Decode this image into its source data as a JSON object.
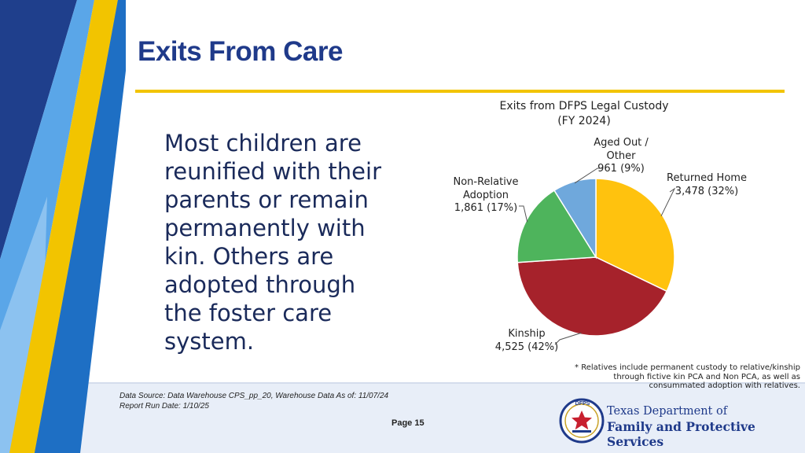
{
  "page": {
    "title": "Exits From Care",
    "page_label": "Page 15"
  },
  "body": {
    "lines": [
      "Most children are",
      "reunified with their",
      "parents or remain",
      "permanently with",
      "kin. Others are",
      "adopted through",
      "the foster care",
      "system."
    ]
  },
  "chart_data": {
    "type": "pie",
    "title_lines": [
      "Exits from DFPS Legal Custody",
      "(FY 2024)"
    ],
    "slices": [
      {
        "name": "Returned Home",
        "value": 3478,
        "percent": 32,
        "value_text": "3,478 (32%)",
        "color": "#ffc20e"
      },
      {
        "name": "Kinship",
        "value": 4525,
        "percent": 42,
        "value_text": "4,525 (42%)",
        "color": "#a6222b"
      },
      {
        "name": "Non-Relative Adoption",
        "name_lines": [
          "Non-Relative",
          "Adoption"
        ],
        "value": 1861,
        "percent": 17,
        "value_text": "1,861 (17%)",
        "color": "#4eb45c"
      },
      {
        "name": "Aged Out / Other",
        "name_lines": [
          "Aged Out /",
          "Other"
        ],
        "value": 961,
        "percent": 9,
        "value_text": "961 (9%)",
        "color": "#6fa8dc"
      }
    ]
  },
  "footnote": {
    "lines": [
      "* Relatives include permanent custody to relative/kinship",
      "through fictive kin PCA and Non PCA, as well as",
      "consummated adoption with relatives."
    ]
  },
  "source": {
    "line1": "Data Source: Data Warehouse CPS_pp_20, Warehouse Data As of: 11/07/24",
    "line2": "Report Run Date: 1/10/25"
  },
  "logo": {
    "seal_text": "DFPS",
    "line1": "Texas Department of",
    "line2": "Family and Protective Services"
  },
  "colors": {
    "navy": "#1f3a8a",
    "gold": "#f2c400",
    "blue": "#1e6fc4",
    "light_blue": "#5aa6e8"
  }
}
